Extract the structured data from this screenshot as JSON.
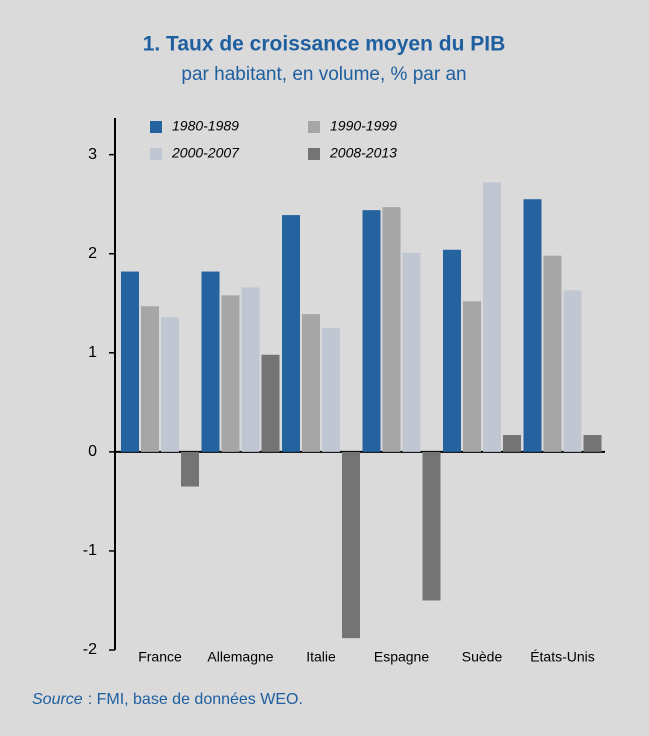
{
  "chart_data": {
    "type": "bar",
    "title": "1. Taux de croissance moyen du PIB",
    "subtitle": "par habitant, en volume, % par an",
    "categories": [
      "France",
      "Allemagne",
      "Italie",
      "Espagne",
      "Suède",
      "États-Unis"
    ],
    "series": [
      {
        "name": "1980-1989",
        "color": "#2462a0",
        "values": [
          1.82,
          1.82,
          2.39,
          2.44,
          2.04,
          2.55
        ]
      },
      {
        "name": "1990-1999",
        "color": "#a6a6a6",
        "values": [
          1.47,
          1.58,
          1.39,
          2.47,
          1.52,
          1.98
        ]
      },
      {
        "name": "2000-2007",
        "color": "#c0c7d2",
        "values": [
          1.36,
          1.66,
          1.25,
          2.01,
          2.72,
          1.63
        ]
      },
      {
        "name": "2008-2013",
        "color": "#747474",
        "values": [
          -0.35,
          0.98,
          -1.88,
          -1.5,
          0.17,
          0.17
        ]
      }
    ],
    "ylim": [
      -2,
      3.37
    ],
    "yticks": [
      -2,
      -1,
      0,
      1,
      2,
      3
    ],
    "source_label": "Source",
    "source_text": ": FMI, base de données WEO."
  }
}
